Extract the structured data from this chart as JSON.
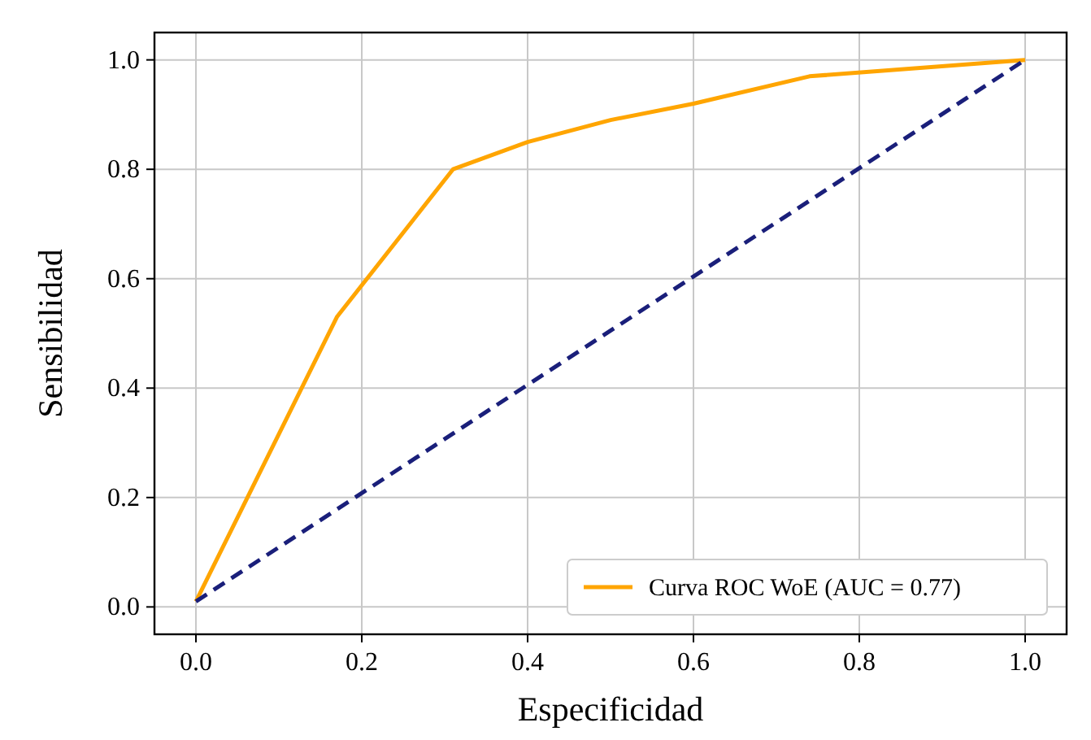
{
  "chart_data": {
    "type": "line",
    "xlabel": "Especificidad",
    "ylabel": "Sensibilidad",
    "xlim": [
      -0.05,
      1.05
    ],
    "ylim": [
      -0.05,
      1.05
    ],
    "xticks": [
      {
        "value": 0,
        "label": "0.0"
      },
      0.2,
      0.4,
      0.6,
      0.8,
      {
        "value": 1,
        "label": "1.0"
      }
    ],
    "yticks": [
      {
        "value": 0,
        "label": "0.0"
      },
      0.2,
      0.4,
      0.6,
      0.8,
      {
        "value": 1,
        "label": "1.0"
      }
    ],
    "grid": true,
    "legend": "bottom right",
    "series": [
      {
        "name": "Curva ROC WoE (AUC = 0.77)",
        "color": "#ffa500",
        "x": [
          0,
          0.17,
          0.31,
          0.4,
          0.5,
          0.6,
          0.74,
          1
        ],
        "values": [
          0.01,
          0.53,
          0.8,
          0.85,
          0.89,
          0.92,
          0.97,
          1
        ],
        "line_style": "solid"
      },
      {
        "color": "#1a1f7a",
        "x": [
          0,
          1
        ],
        "values": [
          0.01,
          1
        ],
        "line_style": "dashed"
      }
    ]
  }
}
